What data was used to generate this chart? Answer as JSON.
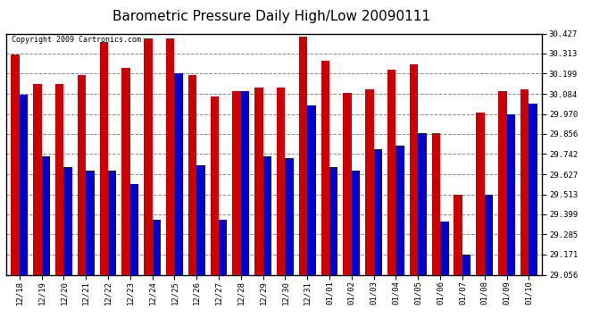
{
  "title": "Barometric Pressure Daily High/Low 20090111",
  "copyright": "Copyright 2009 Cartronics.com",
  "dates": [
    "12/18",
    "12/19",
    "12/20",
    "12/21",
    "12/22",
    "12/23",
    "12/24",
    "12/25",
    "12/26",
    "12/27",
    "12/28",
    "12/29",
    "12/30",
    "12/31",
    "01/01",
    "01/02",
    "01/03",
    "01/04",
    "01/05",
    "01/06",
    "01/07",
    "01/08",
    "01/09",
    "01/10"
  ],
  "highs": [
    30.31,
    30.14,
    30.14,
    30.19,
    30.38,
    30.23,
    30.4,
    30.4,
    30.19,
    30.07,
    30.1,
    30.12,
    30.12,
    30.41,
    30.27,
    30.09,
    30.11,
    30.22,
    30.25,
    29.86,
    29.51,
    29.98,
    30.1,
    30.11
  ],
  "lows": [
    30.08,
    29.73,
    29.67,
    29.65,
    29.65,
    29.57,
    29.37,
    30.2,
    29.68,
    29.37,
    30.1,
    29.73,
    29.72,
    30.02,
    29.67,
    29.65,
    29.77,
    29.79,
    29.86,
    29.36,
    29.17,
    29.51,
    29.97,
    30.03
  ],
  "yticks": [
    29.056,
    29.171,
    29.285,
    29.399,
    29.513,
    29.627,
    29.742,
    29.856,
    29.97,
    30.084,
    30.199,
    30.313,
    30.427
  ],
  "ymin": 29.056,
  "ymax": 30.427,
  "bar_width": 0.38,
  "high_color": "#cc0000",
  "low_color": "#0000cc",
  "bg_color": "#ffffff",
  "grid_color": "#888888",
  "title_fontsize": 11,
  "tick_fontsize": 6.5,
  "copyright_fontsize": 6
}
